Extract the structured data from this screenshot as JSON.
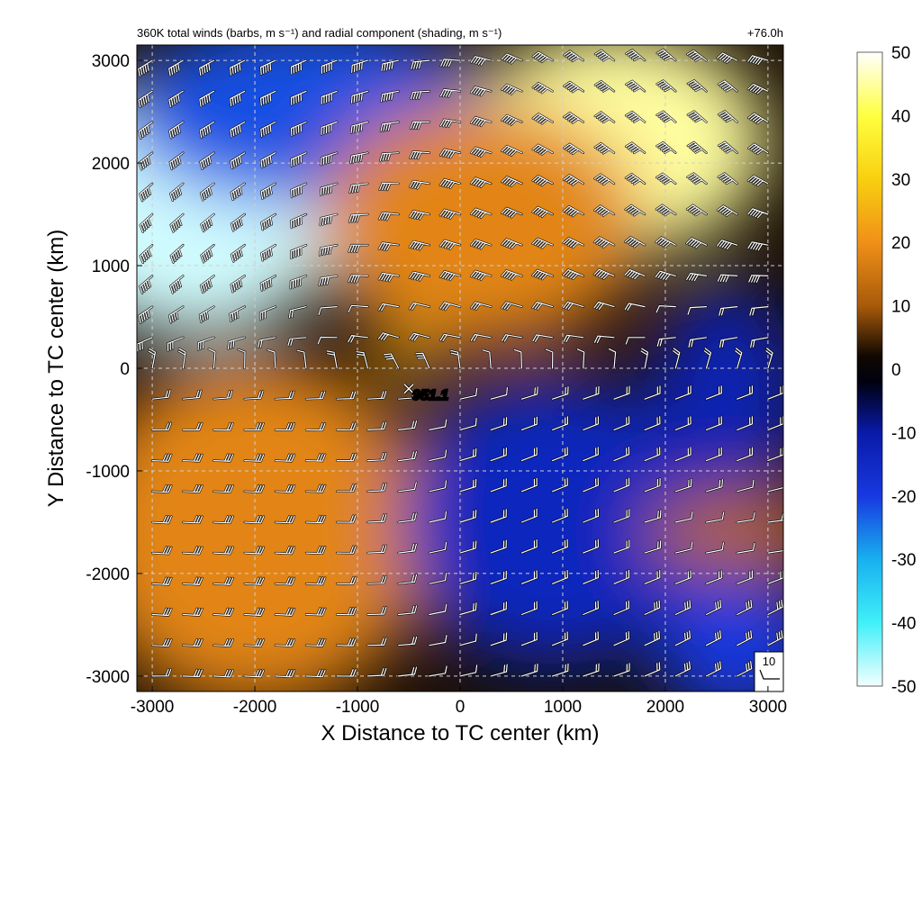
{
  "chart_data": {
    "type": "heatmap",
    "title": "360K total winds (barbs, m s⁻¹) and radial component (shading, m s⁻¹)",
    "valid_time": "+76.0h",
    "xlabel": "X Distance to TC center (km)",
    "ylabel": "Y Distance to TC center (km)",
    "xlim": [
      -3150,
      3150
    ],
    "ylim": [
      -3150,
      3150
    ],
    "xticks": [
      -3000,
      -2000,
      -1000,
      0,
      1000,
      2000,
      3000
    ],
    "yticks": [
      -3000,
      -2000,
      -1000,
      0,
      1000,
      2000,
      3000
    ],
    "grid": true,
    "colorbar": {
      "ticks": [
        50,
        40,
        30,
        20,
        10,
        0,
        -10,
        -20,
        -30,
        -40,
        -50
      ],
      "range": [
        -50,
        50
      ],
      "stops": [
        {
          "v": -50,
          "color": "#f4ffff"
        },
        {
          "v": -40,
          "color": "#40f0f8"
        },
        {
          "v": -30,
          "color": "#18b0f0"
        },
        {
          "v": -20,
          "color": "#1838e0"
        },
        {
          "v": -10,
          "color": "#0a1aa8"
        },
        {
          "v": -2,
          "color": "#000010"
        },
        {
          "v": 2,
          "color": "#100800"
        },
        {
          "v": 10,
          "color": "#a85a0a"
        },
        {
          "v": 20,
          "color": "#f09018"
        },
        {
          "v": 30,
          "color": "#f8d010"
        },
        {
          "v": 40,
          "color": "#ffff40"
        },
        {
          "v": 50,
          "color": "#ffffff"
        }
      ]
    },
    "radial_field_regions": [
      {
        "name": "inflow-northwest",
        "x": -2600,
        "y": 1600,
        "rx": 1500,
        "ry": 1300,
        "value": -48
      },
      {
        "name": "inflow-north",
        "x": -1500,
        "y": 2500,
        "rx": 1800,
        "ry": 900,
        "value": -22
      },
      {
        "name": "outflow-northeast",
        "x": 1500,
        "y": 2200,
        "rx": 1500,
        "ry": 1100,
        "value": 45
      },
      {
        "name": "outflow-north",
        "x": 200,
        "y": 1400,
        "rx": 1600,
        "ry": 1200,
        "value": 18
      },
      {
        "name": "outflow-southwest",
        "x": -2000,
        "y": -1600,
        "rx": 1700,
        "ry": 1700,
        "value": 18
      },
      {
        "name": "inflow-southeast",
        "x": 900,
        "y": -1500,
        "rx": 1500,
        "ry": 1400,
        "value": -14
      },
      {
        "name": "inflow-east",
        "x": 2600,
        "y": -300,
        "rx": 700,
        "ry": 1100,
        "value": -12
      },
      {
        "name": "outflow-southeast-band",
        "x": 2700,
        "y": -1600,
        "rx": 900,
        "ry": 400,
        "value": 12
      },
      {
        "name": "inflow-far-southeast",
        "x": 2700,
        "y": -2700,
        "rx": 800,
        "ry": 700,
        "value": -20
      },
      {
        "name": "outflow-core",
        "x": -500,
        "y": 100,
        "rx": 250,
        "ry": 250,
        "value": 25
      }
    ],
    "storm_center": {
      "x": -500,
      "y": -200,
      "label": "951.1"
    },
    "barb_grid_spacing_km": 300,
    "reference_barb": {
      "label": "10",
      "speed": 10
    }
  }
}
